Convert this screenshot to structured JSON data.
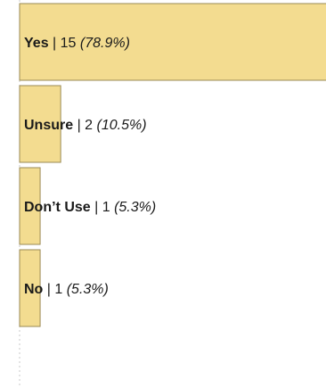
{
  "chart_data": {
    "type": "bar",
    "orientation": "horizontal",
    "title": "",
    "xlabel": "",
    "ylabel": "",
    "categories": [
      "Yes",
      "Unsure",
      "Don’t Use",
      "No"
    ],
    "values": [
      15,
      2,
      1,
      1
    ],
    "percent_labels": [
      "(78.9%)",
      "(10.5%)",
      "(5.3%)",
      "(5.3%)"
    ],
    "xlim": [
      0,
      15
    ],
    "grid": false,
    "legend": "none",
    "bar_color": "#f3dc90",
    "bar_edge_color": "#9a8a55"
  }
}
